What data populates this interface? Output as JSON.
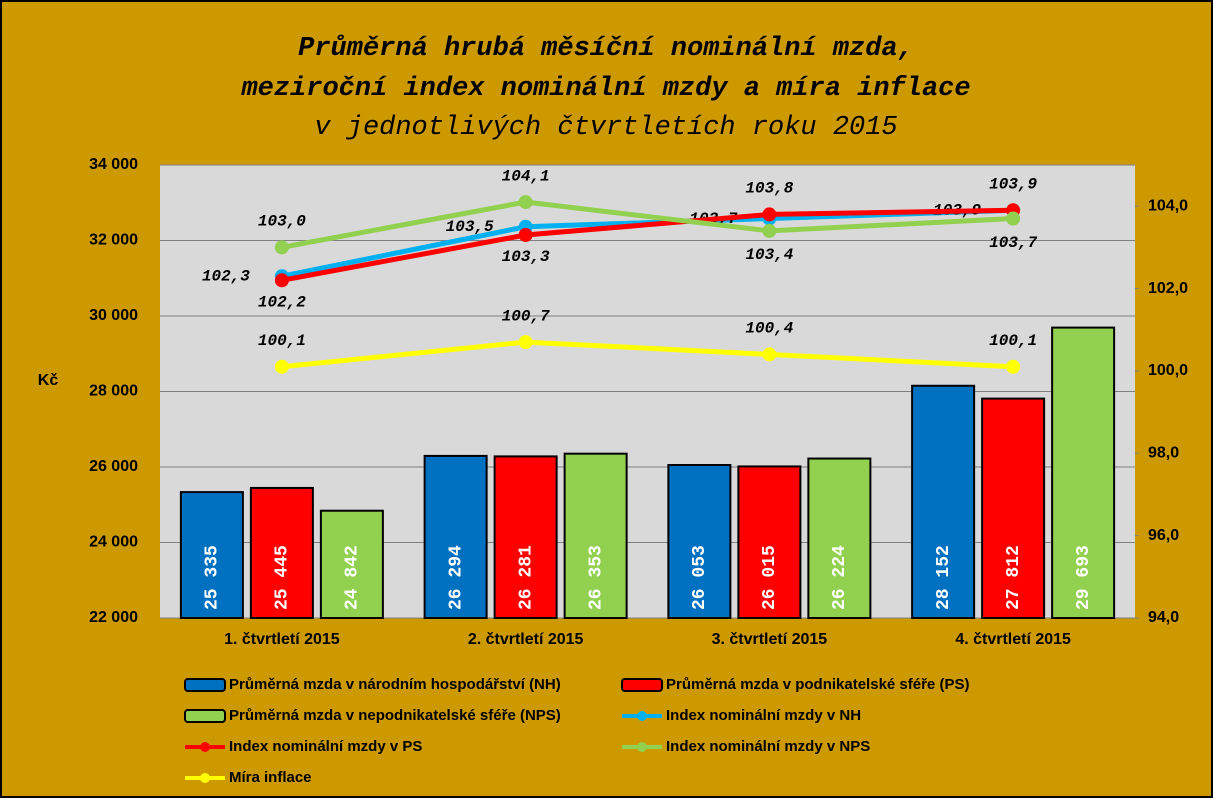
{
  "chart_data": {
    "type": "bar",
    "title": [
      "Průměrná hrubá měsíční nominální mzda,",
      "meziroční index nominální mzdy a míra inflace",
      "v jednotlivých čtvrtletích roku 2015"
    ],
    "ylabel": "Kč",
    "categories": [
      "1. čtvrtletí 2015",
      "2. čtvrtletí 2015",
      "3. čtvrtletí 2015",
      "4. čtvrtletí 2015"
    ],
    "ylim": [
      22000,
      34000
    ],
    "yticks": [
      {
        "value": 22000,
        "label": "22 000"
      },
      {
        "value": 24000,
        "label": "24 000"
      },
      {
        "value": 26000,
        "label": "26 000"
      },
      {
        "value": 28000,
        "label": "28 000"
      },
      {
        "value": 30000,
        "label": "30 000"
      },
      {
        "value": 32000,
        "label": "32 000"
      },
      {
        "value": 34000,
        "label": "34 000"
      }
    ],
    "y2lim": [
      94,
      105
    ],
    "y2ticks": [
      {
        "value": 94,
        "label": "94,0"
      },
      {
        "value": 96,
        "label": "96,0"
      },
      {
        "value": 98,
        "label": "98,0"
      },
      {
        "value": 100,
        "label": "100,0"
      },
      {
        "value": 102,
        "label": "102,0"
      },
      {
        "value": 104,
        "label": "104,0"
      }
    ],
    "grid": true,
    "legend": "bottom",
    "series": [
      {
        "name": "Průměrná mzda v národním hospodářství (NH)",
        "type": "bar",
        "color": "#0070c0",
        "values": [
          25335,
          26294,
          26053,
          28152
        ],
        "value_labels": [
          "25 335",
          "26 294",
          "26 053",
          "28 152"
        ]
      },
      {
        "name": "Průměrná mzda v podnikatelské sféře (PS)",
        "type": "bar",
        "color": "#ff0000",
        "values": [
          25445,
          26281,
          26015,
          27812
        ],
        "value_labels": [
          "25 445",
          "26 281",
          "26 015",
          "27 812"
        ]
      },
      {
        "name": "Průměrná mzda v nepodnikatelské sféře (NPS)",
        "type": "bar",
        "color": "#92d050",
        "values": [
          24842,
          26353,
          26224,
          29693
        ],
        "value_labels": [
          "24 842",
          "26 353",
          "26 224",
          "29 693"
        ]
      },
      {
        "name": "Index nominální mzdy v NH",
        "type": "line",
        "axis": "y2",
        "color": "#00b0f0",
        "values": [
          102.3,
          103.5,
          103.7,
          103.9
        ],
        "value_labels": [
          "102,3",
          "103,5",
          "103,7",
          "103,9"
        ]
      },
      {
        "name": "Index nominální mzdy v PS",
        "type": "line",
        "axis": "y2",
        "color": "#ff0000",
        "values": [
          102.2,
          103.3,
          103.8,
          103.9
        ],
        "value_labels": [
          "102,2",
          "103,3",
          "103,8",
          "103,9"
        ]
      },
      {
        "name": "Index nominální mzdy v NPS",
        "type": "line",
        "axis": "y2",
        "color": "#92d050",
        "values": [
          103.0,
          104.1,
          103.4,
          103.7
        ],
        "value_labels": [
          "103,0",
          "104,1",
          "103,4",
          "103,7"
        ]
      },
      {
        "name": "Míra inflace",
        "type": "line",
        "axis": "y2",
        "color": "#ffff00",
        "values": [
          100.1,
          100.7,
          100.4,
          100.1
        ],
        "value_labels": [
          "100,1",
          "100,7",
          "100,4",
          "100,1"
        ]
      }
    ]
  }
}
